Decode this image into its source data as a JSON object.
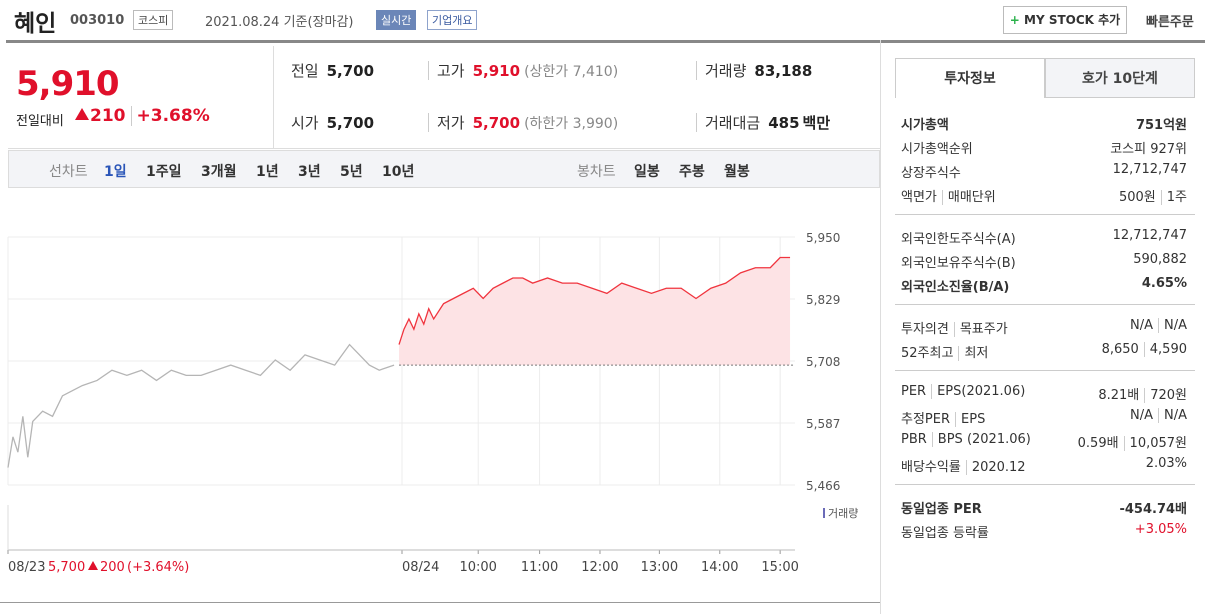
{
  "header": {
    "name": "혜인",
    "code": "003010",
    "market": "코스피",
    "date": "2021.08.24 기준(장마감)",
    "realtime": "실시간",
    "company": "기업개요",
    "mystock": "MY STOCK 추가",
    "quick": "빠른주문"
  },
  "price": {
    "current": "5,910",
    "change_label": "전일대비",
    "change": "210",
    "rate": "+3.68%"
  },
  "summary": [
    {
      "label": "전일",
      "value": "5,700"
    },
    {
      "label": "고가",
      "value": "5,910",
      "note": "(상한가 7,410)"
    },
    {
      "label": "거래량",
      "value": "83,188"
    },
    {
      "label": "시가",
      "value": "5,700"
    },
    {
      "label": "저가",
      "value": "5,700",
      "note": "(하한가 3,990)"
    },
    {
      "label": "거래대금",
      "value": "485",
      "unit": "백만"
    }
  ],
  "tabs": {
    "line_chart": "선차트",
    "periods": [
      "1일",
      "1주일",
      "3개월",
      "1년",
      "3년",
      "5년",
      "10년"
    ],
    "candle_chart": "봉차트",
    "candles": [
      "일봉",
      "주봉",
      "월봉"
    ]
  },
  "chart_data": {
    "type": "line",
    "ylim": [
      5466,
      5950
    ],
    "xlim": [
      0,
      795
    ],
    "reference": 5700,
    "grid": true,
    "yticks": [
      {
        "value": 5950,
        "label": "5,950"
      },
      {
        "value": 5829,
        "label": "5,829"
      },
      {
        "value": 5708,
        "label": "5,708"
      },
      {
        "value": 5587,
        "label": "5,587"
      },
      {
        "value": 5466,
        "label": "5,466"
      }
    ],
    "xticks": [
      {
        "value": 0,
        "label": "08/23"
      },
      {
        "value": 398,
        "label": "08/24"
      },
      {
        "value": 475,
        "label": "10:00"
      },
      {
        "value": 537,
        "label": "11:00"
      },
      {
        "value": 598,
        "label": "12:00"
      },
      {
        "value": 658,
        "label": "13:00"
      },
      {
        "value": 719,
        "label": "14:00"
      },
      {
        "value": 780,
        "label": "15:00"
      }
    ],
    "series": [
      {
        "color": "#b5b5b5",
        "x": [
          0,
          5,
          10,
          15,
          20,
          25,
          35,
          45,
          55,
          65,
          75,
          90,
          105,
          120,
          135,
          150,
          165,
          180,
          195,
          210,
          225,
          240,
          255,
          270,
          285,
          300,
          315,
          330,
          345,
          355,
          365,
          375,
          390
        ],
        "values": [
          5500,
          5560,
          5530,
          5600,
          5520,
          5590,
          5610,
          5600,
          5640,
          5650,
          5660,
          5670,
          5690,
          5680,
          5690,
          5670,
          5690,
          5680,
          5680,
          5690,
          5700,
          5690,
          5680,
          5710,
          5690,
          5720,
          5710,
          5700,
          5740,
          5720,
          5700,
          5690,
          5700
        ]
      },
      {
        "color": "#f0343e",
        "fill": "#fde3e5",
        "x": [
          395,
          400,
          405,
          410,
          415,
          420,
          425,
          430,
          440,
          450,
          460,
          470,
          480,
          490,
          500,
          510,
          520,
          530,
          545,
          560,
          575,
          590,
          605,
          620,
          635,
          650,
          665,
          680,
          695,
          710,
          725,
          740,
          755,
          770,
          780,
          790
        ],
        "values": [
          5740,
          5770,
          5790,
          5770,
          5800,
          5780,
          5810,
          5790,
          5820,
          5830,
          5840,
          5850,
          5830,
          5850,
          5860,
          5870,
          5870,
          5860,
          5870,
          5860,
          5860,
          5850,
          5840,
          5860,
          5850,
          5840,
          5850,
          5850,
          5830,
          5850,
          5860,
          5880,
          5890,
          5890,
          5910,
          5910
        ]
      }
    ],
    "volume_label": "거래량",
    "prev_close": "5,700",
    "prev_change": "200",
    "prev_rate": "(+3.64%)"
  },
  "info": {
    "tabs": [
      "투자정보",
      "호가 10단계"
    ],
    "sections": [
      [
        {
          "label": [
            "시가총액"
          ],
          "value": [
            "751억원"
          ],
          "bold": true
        },
        {
          "label": [
            "시가총액순위"
          ],
          "value": [
            "코스피 927위"
          ]
        },
        {
          "label": [
            "상장주식수"
          ],
          "value": [
            "12,712,747"
          ]
        },
        {
          "label": [
            "액면가",
            "매매단위"
          ],
          "value": [
            "500원",
            "1주"
          ]
        }
      ],
      [
        {
          "label": [
            "외국인한도주식수(A)"
          ],
          "value": [
            "12,712,747"
          ]
        },
        {
          "label": [
            "외국인보유주식수(B)"
          ],
          "value": [
            "590,882"
          ]
        },
        {
          "label": [
            "외국인소진율(B/A)"
          ],
          "value": [
            "4.65%"
          ],
          "bold": true
        }
      ],
      [
        {
          "label": [
            "투자의견",
            "목표주가"
          ],
          "value": [
            "N/A",
            "N/A"
          ]
        },
        {
          "label": [
            "52주최고",
            "최저"
          ],
          "value": [
            "8,650",
            "4,590"
          ]
        }
      ],
      [
        {
          "label": [
            "PER",
            "EPS(2021.06)"
          ],
          "value": [
            "8.21배",
            "720원"
          ]
        },
        {
          "label": [
            "추정PER",
            "EPS"
          ],
          "value": [
            "N/A",
            "N/A"
          ]
        },
        {
          "label": [
            "PBR",
            "BPS (2021.06)"
          ],
          "value": [
            "0.59배",
            "10,057원"
          ]
        },
        {
          "label": [
            "배당수익률",
            "2020.12"
          ],
          "value": [
            "2.03%"
          ]
        }
      ],
      [
        {
          "label": [
            "동일업종 PER"
          ],
          "value": [
            "-454.74배"
          ],
          "bold": true
        },
        {
          "label": [
            "동일업종 등락률"
          ],
          "value": [
            "+3.05%"
          ],
          "red": true
        }
      ]
    ]
  }
}
